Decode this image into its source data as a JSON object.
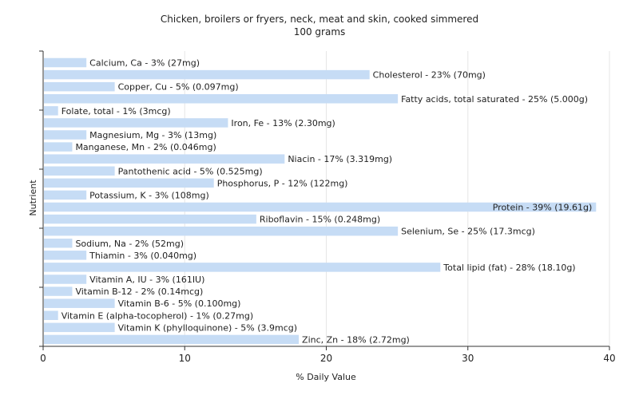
{
  "chart_data": {
    "type": "bar",
    "orientation": "horizontal",
    "title": "Chicken, broilers or fryers, neck, meat and skin, cooked simmered",
    "subtitle": "100 grams",
    "xlabel": "% Daily Value",
    "ylabel": "Nutrient",
    "xlim": [
      0,
      40
    ],
    "xticks": [
      "0",
      "10",
      "20",
      "30",
      "40"
    ],
    "grid": true,
    "bar_color": "#c6dcf5",
    "categories": [
      "Calcium, Ca",
      "Cholesterol",
      "Copper, Cu",
      "Fatty acids, total saturated",
      "Folate, total",
      "Iron, Fe",
      "Magnesium, Mg",
      "Manganese, Mn",
      "Niacin",
      "Pantothenic acid",
      "Phosphorus, P",
      "Potassium, K",
      "Protein",
      "Riboflavin",
      "Selenium, Se",
      "Sodium, Na",
      "Thiamin",
      "Total lipid (fat)",
      "Vitamin A, IU",
      "Vitamin B-12",
      "Vitamin B-6",
      "Vitamin E (alpha-tocopherol)",
      "Vitamin K (phylloquinone)",
      "Zinc, Zn"
    ],
    "values": [
      3,
      23,
      5,
      25,
      1,
      13,
      3,
      2,
      17,
      5,
      12,
      3,
      39,
      15,
      25,
      2,
      3,
      28,
      3,
      2,
      5,
      1,
      5,
      18
    ],
    "labels": [
      "Calcium, Ca - 3% (27mg)",
      "Cholesterol - 23% (70mg)",
      "Copper, Cu - 5% (0.097mg)",
      "Fatty acids, total saturated - 25% (5.000g)",
      "Folate, total - 1% (3mcg)",
      "Iron, Fe - 13% (2.30mg)",
      "Magnesium, Mg - 3% (13mg)",
      "Manganese, Mn - 2% (0.046mg)",
      "Niacin - 17% (3.319mg)",
      "Pantothenic acid - 5% (0.525mg)",
      "Phosphorus, P - 12% (122mg)",
      "Potassium, K - 3% (108mg)",
      "Protein - 39% (19.61g)",
      "Riboflavin - 15% (0.248mg)",
      "Selenium, Se - 25% (17.3mcg)",
      "Sodium, Na - 2% (52mg)",
      "Thiamin - 3% (0.040mg)",
      "Total lipid (fat) - 28% (18.10g)",
      "Vitamin A, IU - 3% (161IU)",
      "Vitamin B-12 - 2% (0.14mcg)",
      "Vitamin B-6 - 5% (0.100mg)",
      "Vitamin E (alpha-tocopherol) - 1% (0.27mg)",
      "Vitamin K (phylloquinone) - 5% (3.9mcg)",
      "Zinc, Zn - 18% (2.72mg)"
    ]
  }
}
